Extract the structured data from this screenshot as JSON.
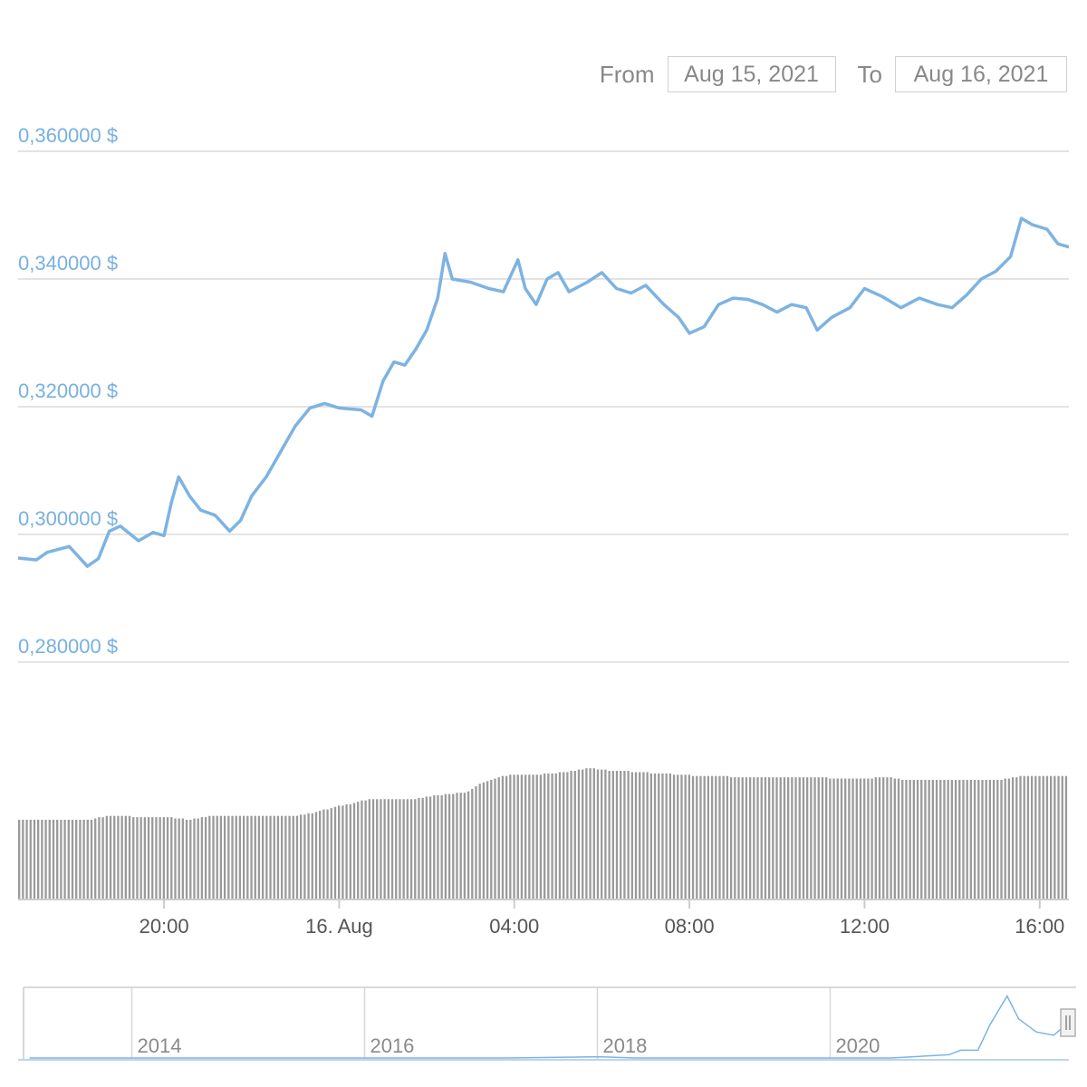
{
  "date_range": {
    "from_label": "From",
    "from_value": "Aug 15, 2021",
    "to_label": "To",
    "to_value": "Aug 16, 2021"
  },
  "colors": {
    "price_line": "#7db3e2",
    "axis_text": "#78b0e0",
    "grid": "#e3e3e3",
    "volume": "#9a9a9a",
    "tick_text": "#555555",
    "navigator_text": "#8a8a8a"
  },
  "chart_data": {
    "type": "line",
    "x_start": "Aug 15, 2021 16:40",
    "x_end": "Aug 16, 2021 16:40",
    "y_tick_labels": [
      "0,360000 $",
      "0,340000 $",
      "0,320000 $",
      "0,300000 $",
      "0,280000 $"
    ],
    "x_tick_labels": [
      "20:00",
      "16. Aug",
      "04:00",
      "08:00",
      "12:00",
      "16:00"
    ],
    "x_tick_times": [
      "Aug 15, 2021 20:00",
      "Aug 16, 2021 00:00",
      "Aug 16, 2021 04:00",
      "Aug 16, 2021 08:00",
      "Aug 16, 2021 12:00",
      "Aug 16, 2021 16:00"
    ],
    "ylim": [
      0.278,
      0.36
    ],
    "grid": true,
    "series": [
      {
        "kind": "price",
        "points": [
          [
            "Aug 15, 2021 16:40",
            0.2963
          ],
          [
            "Aug 15, 2021 17:05",
            0.296
          ],
          [
            "Aug 15, 2021 17:20",
            0.2972
          ],
          [
            "Aug 15, 2021 17:50",
            0.2981
          ],
          [
            "Aug 15, 2021 18:15",
            0.295
          ],
          [
            "Aug 15, 2021 18:30",
            0.2962
          ],
          [
            "Aug 15, 2021 18:45",
            0.3005
          ],
          [
            "Aug 15, 2021 19:00",
            0.3013
          ],
          [
            "Aug 15, 2021 19:25",
            0.299
          ],
          [
            "Aug 15, 2021 19:45",
            0.3003
          ],
          [
            "Aug 15, 2021 20:00",
            0.2998
          ],
          [
            "Aug 15, 2021 20:10",
            0.305
          ],
          [
            "Aug 15, 2021 20:20",
            0.309
          ],
          [
            "Aug 15, 2021 20:35",
            0.306
          ],
          [
            "Aug 15, 2021 20:50",
            0.3038
          ],
          [
            "Aug 15, 2021 21:10",
            0.303
          ],
          [
            "Aug 15, 2021 21:30",
            0.3005
          ],
          [
            "Aug 15, 2021 21:45",
            0.3022
          ],
          [
            "Aug 15, 2021 22:00",
            0.306
          ],
          [
            "Aug 15, 2021 22:20",
            0.309
          ],
          [
            "Aug 15, 2021 22:40",
            0.313
          ],
          [
            "Aug 15, 2021 23:00",
            0.317
          ],
          [
            "Aug 15, 2021 23:20",
            0.3198
          ],
          [
            "Aug 15, 2021 23:40",
            0.3205
          ],
          [
            "Aug 16, 2021 00:00",
            0.3198
          ],
          [
            "Aug 16, 2021 00:30",
            0.3195
          ],
          [
            "Aug 16, 2021 00:45",
            0.3185
          ],
          [
            "Aug 16, 2021 01:00",
            0.324
          ],
          [
            "Aug 16, 2021 01:15",
            0.327
          ],
          [
            "Aug 16, 2021 01:30",
            0.3265
          ],
          [
            "Aug 16, 2021 01:45",
            0.329
          ],
          [
            "Aug 16, 2021 02:00",
            0.332
          ],
          [
            "Aug 16, 2021 02:15",
            0.337
          ],
          [
            "Aug 16, 2021 02:25",
            0.344
          ],
          [
            "Aug 16, 2021 02:35",
            0.34
          ],
          [
            "Aug 16, 2021 03:00",
            0.3395
          ],
          [
            "Aug 16, 2021 03:25",
            0.3385
          ],
          [
            "Aug 16, 2021 03:45",
            0.338
          ],
          [
            "Aug 16, 2021 04:05",
            0.343
          ],
          [
            "Aug 16, 2021 04:15",
            0.3385
          ],
          [
            "Aug 16, 2021 04:30",
            0.336
          ],
          [
            "Aug 16, 2021 04:45",
            0.34
          ],
          [
            "Aug 16, 2021 05:00",
            0.341
          ],
          [
            "Aug 16, 2021 05:15",
            0.338
          ],
          [
            "Aug 16, 2021 05:40",
            0.3395
          ],
          [
            "Aug 16, 2021 06:00",
            0.341
          ],
          [
            "Aug 16, 2021 06:20",
            0.3385
          ],
          [
            "Aug 16, 2021 06:40",
            0.3378
          ],
          [
            "Aug 16, 2021 07:00",
            0.339
          ],
          [
            "Aug 16, 2021 07:25",
            0.336
          ],
          [
            "Aug 16, 2021 07:45",
            0.334
          ],
          [
            "Aug 16, 2021 08:00",
            0.3315
          ],
          [
            "Aug 16, 2021 08:20",
            0.3325
          ],
          [
            "Aug 16, 2021 08:40",
            0.336
          ],
          [
            "Aug 16, 2021 09:00",
            0.337
          ],
          [
            "Aug 16, 2021 09:20",
            0.3368
          ],
          [
            "Aug 16, 2021 09:40",
            0.336
          ],
          [
            "Aug 16, 2021 10:00",
            0.3348
          ],
          [
            "Aug 16, 2021 10:20",
            0.336
          ],
          [
            "Aug 16, 2021 10:40",
            0.3355
          ],
          [
            "Aug 16, 2021 10:55",
            0.332
          ],
          [
            "Aug 16, 2021 11:15",
            0.334
          ],
          [
            "Aug 16, 2021 11:40",
            0.3355
          ],
          [
            "Aug 16, 2021 12:00",
            0.3385
          ],
          [
            "Aug 16, 2021 12:25",
            0.3372
          ],
          [
            "Aug 16, 2021 12:50",
            0.3355
          ],
          [
            "Aug 16, 2021 13:15",
            0.337
          ],
          [
            "Aug 16, 2021 13:40",
            0.336
          ],
          [
            "Aug 16, 2021 14:00",
            0.3355
          ],
          [
            "Aug 16, 2021 14:20",
            0.3375
          ],
          [
            "Aug 16, 2021 14:40",
            0.34
          ],
          [
            "Aug 16, 2021 15:00",
            0.3412
          ],
          [
            "Aug 16, 2021 15:20",
            0.3435
          ],
          [
            "Aug 16, 2021 15:35",
            0.3495
          ],
          [
            "Aug 16, 2021 15:50",
            0.3485
          ],
          [
            "Aug 16, 2021 16:10",
            0.3478
          ],
          [
            "Aug 16, 2021 16:25",
            0.3455
          ],
          [
            "Aug 16, 2021 16:40",
            0.345
          ]
        ]
      },
      {
        "kind": "volume",
        "values": [
          0.62,
          0.62,
          0.62,
          0.62,
          0.62,
          0.62,
          0.62,
          0.62,
          0.62,
          0.62,
          0.62,
          0.62,
          0.62,
          0.62,
          0.62,
          0.62,
          0.62,
          0.62,
          0.62,
          0.62,
          0.63,
          0.64,
          0.64,
          0.65,
          0.65,
          0.65,
          0.65,
          0.65,
          0.65,
          0.65,
          0.64,
          0.64,
          0.64,
          0.64,
          0.64,
          0.64,
          0.64,
          0.64,
          0.64,
          0.64,
          0.64,
          0.63,
          0.63,
          0.63,
          0.62,
          0.62,
          0.63,
          0.63,
          0.64,
          0.64,
          0.65,
          0.65,
          0.65,
          0.65,
          0.65,
          0.65,
          0.65,
          0.65,
          0.65,
          0.65,
          0.65,
          0.65,
          0.65,
          0.65,
          0.65,
          0.65,
          0.65,
          0.65,
          0.65,
          0.65,
          0.65,
          0.65,
          0.65,
          0.65,
          0.66,
          0.66,
          0.67,
          0.67,
          0.68,
          0.69,
          0.7,
          0.7,
          0.71,
          0.72,
          0.73,
          0.73,
          0.74,
          0.74,
          0.75,
          0.76,
          0.77,
          0.77,
          0.78,
          0.78,
          0.78,
          0.78,
          0.78,
          0.78,
          0.78,
          0.78,
          0.78,
          0.78,
          0.78,
          0.78,
          0.78,
          0.79,
          0.79,
          0.8,
          0.8,
          0.81,
          0.81,
          0.81,
          0.82,
          0.82,
          0.82,
          0.83,
          0.83,
          0.83,
          0.84,
          0.86,
          0.88,
          0.9,
          0.91,
          0.92,
          0.93,
          0.94,
          0.95,
          0.96,
          0.96,
          0.97,
          0.97,
          0.97,
          0.97,
          0.97,
          0.97,
          0.97,
          0.97,
          0.97,
          0.98,
          0.98,
          0.98,
          0.98,
          0.99,
          0.99,
          0.99,
          1.0,
          1.0,
          1.01,
          1.01,
          1.02,
          1.02,
          1.02,
          1.01,
          1.01,
          1.01,
          1.0,
          1.0,
          1.0,
          1.0,
          1.0,
          1.0,
          0.99,
          0.99,
          0.99,
          0.99,
          0.99,
          0.98,
          0.98,
          0.98,
          0.98,
          0.98,
          0.98,
          0.97,
          0.97,
          0.97,
          0.97,
          0.97,
          0.96,
          0.96,
          0.96,
          0.96,
          0.96,
          0.96,
          0.96,
          0.96,
          0.96,
          0.96,
          0.95,
          0.95,
          0.95,
          0.95,
          0.95,
          0.95,
          0.95,
          0.95,
          0.95,
          0.95,
          0.95,
          0.95,
          0.95,
          0.95,
          0.95,
          0.95,
          0.95,
          0.95,
          0.95,
          0.95,
          0.95,
          0.95,
          0.95,
          0.95,
          0.95,
          0.95,
          0.94,
          0.94,
          0.94,
          0.94,
          0.94,
          0.94,
          0.94,
          0.94,
          0.94,
          0.94,
          0.94,
          0.94,
          0.95,
          0.95,
          0.95,
          0.95,
          0.95,
          0.94,
          0.94,
          0.93,
          0.93,
          0.93,
          0.93,
          0.93,
          0.93,
          0.93,
          0.93,
          0.93,
          0.93,
          0.93,
          0.93,
          0.93,
          0.93,
          0.93,
          0.93,
          0.93,
          0.93,
          0.93,
          0.93,
          0.93,
          0.93,
          0.93,
          0.93,
          0.93,
          0.93,
          0.93,
          0.94,
          0.94,
          0.95,
          0.95,
          0.96,
          0.96,
          0.96,
          0.96,
          0.96,
          0.96,
          0.96,
          0.96,
          0.96,
          0.96,
          0.96,
          0.96,
          0.96
        ]
      }
    ],
    "navigator": {
      "year_labels": [
        "2014",
        "2016",
        "2018",
        "2020"
      ],
      "series_points": [
        [
          2013.1,
          0.0
        ],
        [
          2017.2,
          0.0
        ],
        [
          2018.0,
          0.02
        ],
        [
          2018.3,
          0.0
        ],
        [
          2020.5,
          0.0
        ],
        [
          2021.0,
          0.05
        ],
        [
          2021.1,
          0.12
        ],
        [
          2021.25,
          0.12
        ],
        [
          2021.35,
          0.5
        ],
        [
          2021.5,
          0.95
        ],
        [
          2021.6,
          0.6
        ],
        [
          2021.75,
          0.4
        ],
        [
          2021.9,
          0.35
        ],
        [
          2022.0,
          0.5
        ]
      ]
    }
  }
}
